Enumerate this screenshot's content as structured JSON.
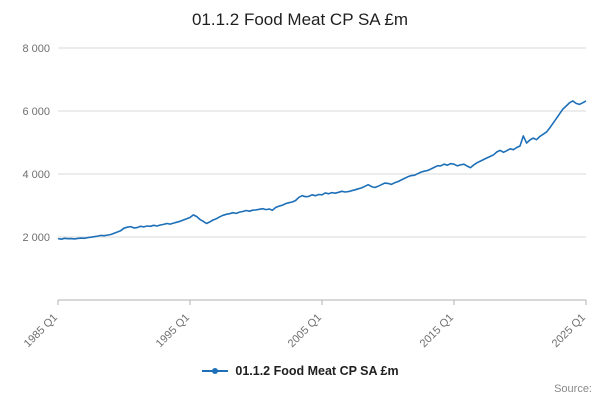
{
  "chart_data": {
    "type": "line",
    "title": "01.1.2 Food Meat CP SA £m",
    "xlabel": "",
    "ylabel": "",
    "ylim": [
      0,
      8000
    ],
    "grid": "horizontal",
    "legend_position": "bottom",
    "line_color": "#1d70b8",
    "x_tick_labels": [
      "1985 Q1",
      "1995 Q1",
      "2005 Q1",
      "2015 Q1",
      "2025 Q1"
    ],
    "x_tick_indices": [
      0,
      40,
      80,
      120,
      160
    ],
    "y_ticks": [
      2000,
      4000,
      6000,
      8000
    ],
    "y_tick_labels": [
      "2 000",
      "4 000",
      "6 000",
      "8 000"
    ],
    "x_start": "1985 Q1",
    "x_end": "2025 Q1",
    "x_frequency": "quarterly",
    "series": [
      {
        "name": "01.1.2 Food Meat CP SA £m",
        "values": [
          1950,
          1930,
          1960,
          1945,
          1950,
          1940,
          1955,
          1965,
          1960,
          1980,
          1995,
          2010,
          2030,
          2050,
          2040,
          2060,
          2080,
          2120,
          2160,
          2200,
          2280,
          2310,
          2330,
          2290,
          2300,
          2340,
          2320,
          2350,
          2340,
          2370,
          2350,
          2380,
          2400,
          2430,
          2410,
          2440,
          2470,
          2500,
          2540,
          2580,
          2620,
          2700,
          2650,
          2560,
          2500,
          2430,
          2480,
          2540,
          2580,
          2640,
          2690,
          2720,
          2740,
          2770,
          2750,
          2790,
          2810,
          2840,
          2820,
          2850,
          2860,
          2880,
          2900,
          2870,
          2890,
          2850,
          2940,
          2980,
          3010,
          3060,
          3090,
          3110,
          3160,
          3260,
          3310,
          3280,
          3290,
          3340,
          3310,
          3350,
          3340,
          3400,
          3370,
          3410,
          3390,
          3420,
          3450,
          3430,
          3440,
          3470,
          3500,
          3530,
          3560,
          3610,
          3660,
          3600,
          3570,
          3610,
          3660,
          3710,
          3700,
          3670,
          3720,
          3760,
          3810,
          3860,
          3910,
          3950,
          3960,
          4010,
          4060,
          4090,
          4110,
          4160,
          4210,
          4260,
          4260,
          4310,
          4280,
          4330,
          4310,
          4260,
          4290,
          4310,
          4250,
          4200,
          4290,
          4360,
          4410,
          4460,
          4510,
          4560,
          4610,
          4700,
          4750,
          4690,
          4740,
          4800,
          4770,
          4840,
          4890,
          5210,
          4980,
          5080,
          5140,
          5090,
          5190,
          5260,
          5330,
          5460,
          5610,
          5760,
          5910,
          6060,
          6160,
          6260,
          6320,
          6240,
          6210,
          6260,
          6320
        ]
      }
    ]
  },
  "footer": {
    "source_label": "Source:"
  }
}
